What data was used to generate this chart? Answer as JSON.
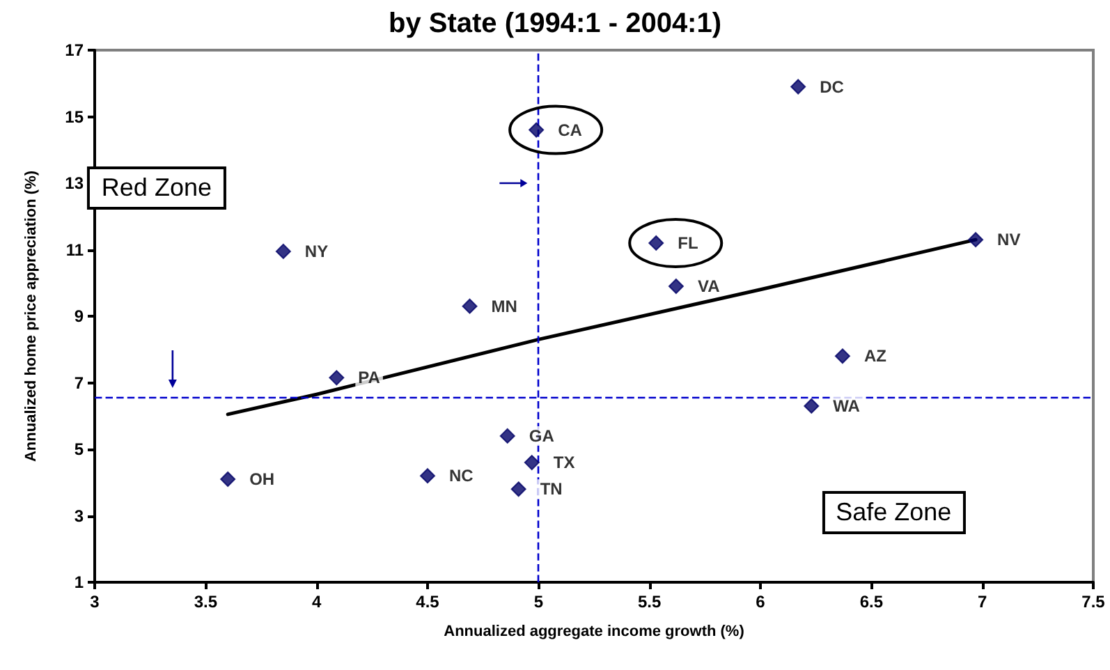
{
  "chart_data": {
    "type": "scatter",
    "title": "by State (1994:1 - 2004:1)",
    "xlabel": "Annualized aggregate income growth (%)",
    "ylabel": "Annualized home price appreciation (%)",
    "series": [
      {
        "color": "#000066",
        "marker": "diamond",
        "x": [
          6.17,
          4.99,
          3.85,
          4.69,
          5.53,
          5.62,
          6.97,
          6.37,
          6.23,
          4.09,
          4.86,
          4.97,
          4.91,
          4.5,
          3.6
        ],
        "values": [
          15.9,
          14.6,
          10.95,
          9.3,
          11.2,
          9.9,
          11.3,
          7.8,
          6.3,
          7.15,
          5.4,
          4.6,
          3.8,
          4.2,
          4.1
        ],
        "value_labels": [
          "DC",
          "CA",
          "NY",
          "MN",
          "FL",
          "VA",
          "NV",
          "AZ",
          "WA",
          "PA",
          "GA",
          "TX",
          "TN",
          "NC",
          "OH"
        ]
      },
      {
        "type": "line",
        "color": "#000000",
        "marker": "none",
        "line_style": "solid",
        "x": [
          3.6,
          4.0,
          5.0,
          6.0,
          6.97
        ],
        "values": [
          6.05,
          6.65,
          8.3,
          9.8,
          11.3
        ]
      }
    ],
    "xlim": [
      3,
      7.5
    ],
    "xticks": [
      3,
      3.5,
      4,
      4.5,
      5,
      5.5,
      6,
      6.5,
      7,
      7.5
    ],
    "ylim": [
      1,
      17
    ],
    "yticks": [
      1,
      3,
      5,
      7,
      9,
      11,
      13,
      15,
      17
    ],
    "ref_lines": [
      {
        "axis": "y",
        "value": 6.55,
        "color": "#0000cc",
        "line_style": "dashed"
      },
      {
        "axis": "x",
        "value": 5,
        "color": "#0000cc",
        "line_style": "dashed"
      }
    ],
    "annotations": [
      "Red Zone",
      "Safe Zone"
    ],
    "grid": false
  }
}
